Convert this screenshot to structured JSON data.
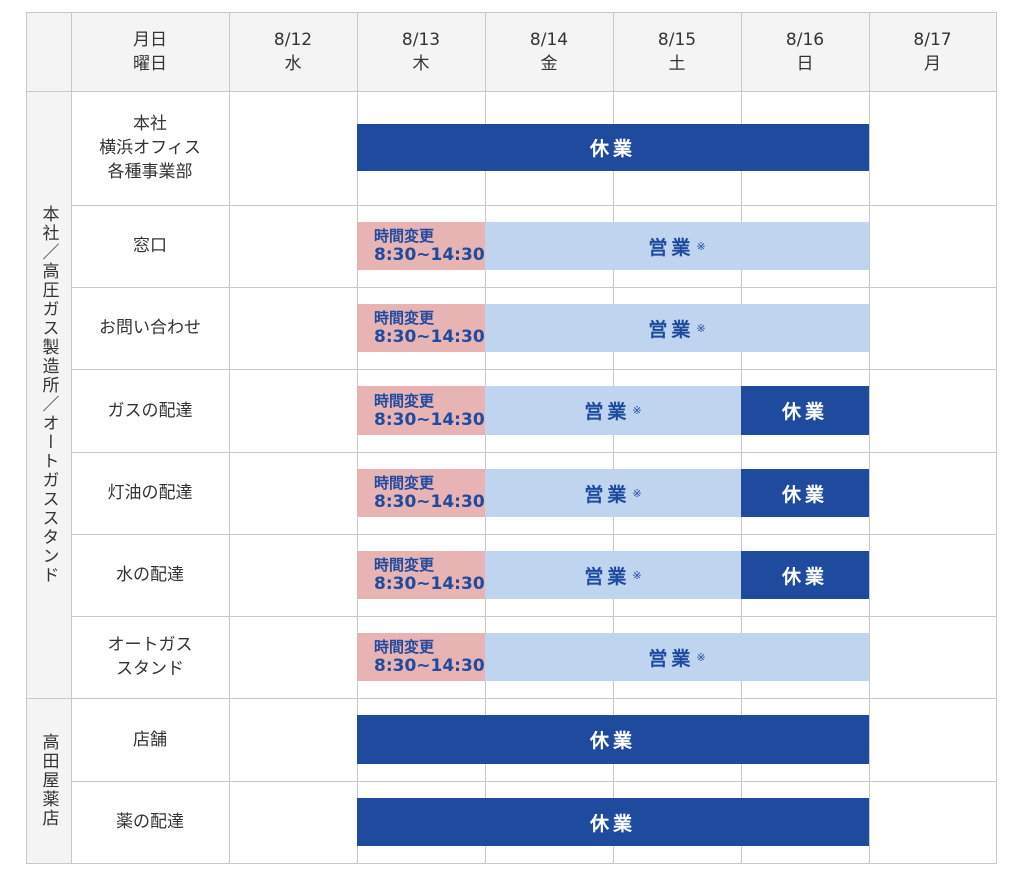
{
  "header": {
    "date_label": "月日\n曜日",
    "days": [
      {
        "date": "8/12",
        "weekday": "水"
      },
      {
        "date": "8/13",
        "weekday": "木"
      },
      {
        "date": "8/14",
        "weekday": "金"
      },
      {
        "date": "8/15",
        "weekday": "土"
      },
      {
        "date": "8/16",
        "weekday": "日"
      },
      {
        "date": "8/17",
        "weekday": "月"
      }
    ]
  },
  "groups": [
    {
      "label": "本社／高圧ガス製造所／オートガススタンド",
      "rows": [
        0,
        1,
        2,
        3,
        4,
        5,
        6
      ]
    },
    {
      "label": "高田屋薬店",
      "rows": [
        7,
        8
      ]
    }
  ],
  "labels": {
    "closed": "休業",
    "open": "営業",
    "note_mark": "※",
    "change_title": "時間変更",
    "change_hours": "8:30~14:30"
  },
  "rows": [
    {
      "name": "本社\n横浜オフィス\n各種事業部",
      "bars": [
        {
          "type": "closed",
          "start": 1,
          "end": 4
        }
      ]
    },
    {
      "name": "窓口",
      "bars": [
        {
          "type": "change",
          "start": 1,
          "end": 1
        },
        {
          "type": "open",
          "start": 2,
          "end": 4
        }
      ]
    },
    {
      "name": "お問い合わせ",
      "bars": [
        {
          "type": "change",
          "start": 1,
          "end": 1
        },
        {
          "type": "open",
          "start": 2,
          "end": 4
        }
      ]
    },
    {
      "name": "ガスの配達",
      "bars": [
        {
          "type": "change",
          "start": 1,
          "end": 1
        },
        {
          "type": "open",
          "start": 2,
          "end": 3
        },
        {
          "type": "closed",
          "start": 4,
          "end": 4
        }
      ]
    },
    {
      "name": "灯油の配達",
      "bars": [
        {
          "type": "change",
          "start": 1,
          "end": 1
        },
        {
          "type": "open",
          "start": 2,
          "end": 3
        },
        {
          "type": "closed",
          "start": 4,
          "end": 4
        }
      ]
    },
    {
      "name": "水の配達",
      "bars": [
        {
          "type": "change",
          "start": 1,
          "end": 1
        },
        {
          "type": "open",
          "start": 2,
          "end": 3
        },
        {
          "type": "closed",
          "start": 4,
          "end": 4
        }
      ]
    },
    {
      "name": "オートガス\nスタンド",
      "bars": [
        {
          "type": "change",
          "start": 1,
          "end": 1
        },
        {
          "type": "open",
          "start": 2,
          "end": 4
        }
      ]
    },
    {
      "name": "店舗",
      "bars": [
        {
          "type": "closed",
          "start": 1,
          "end": 4
        }
      ]
    },
    {
      "name": "薬の配達",
      "bars": [
        {
          "type": "closed",
          "start": 1,
          "end": 4
        }
      ]
    }
  ]
}
